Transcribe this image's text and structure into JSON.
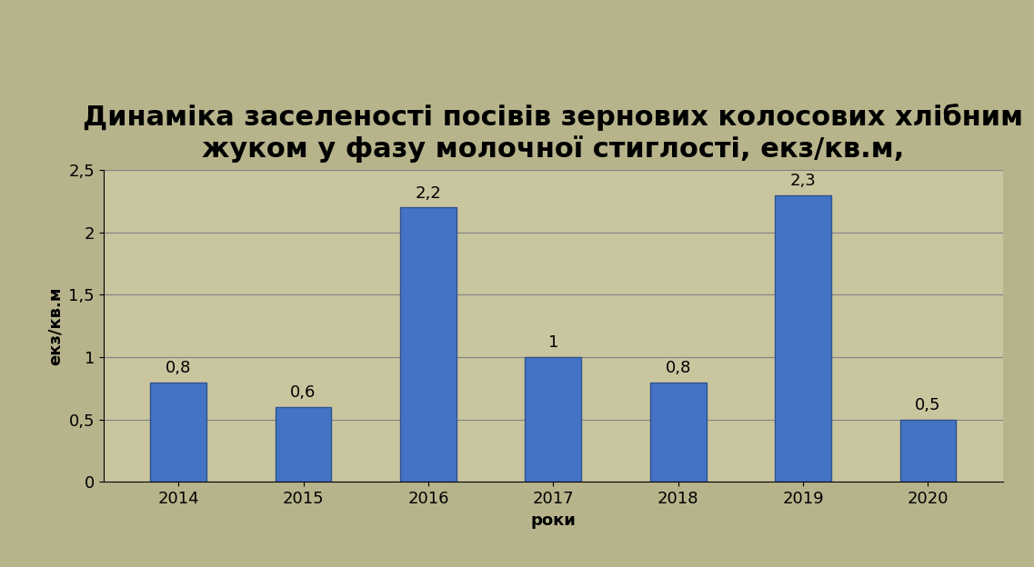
{
  "chart_data": {
    "type": "bar",
    "title": "Динаміка заселеності посівів зернових колосових хлібним жуком у фазу молочної стиглості, екз/кв.м,",
    "x_label": "роки",
    "y_label": "екз/кв.м",
    "categories": [
      "2014",
      "2015",
      "2016",
      "2017",
      "2018",
      "2019",
      "2020"
    ],
    "values": [
      0.8,
      0.6,
      2.2,
      1,
      0.8,
      2.3,
      0.5
    ],
    "value_labels": [
      "0,8",
      "0,6",
      "2,2",
      "1",
      "0,8",
      "2,3",
      "0,5"
    ],
    "data_labels": true,
    "color": "#4472c4",
    "ylim": [
      0,
      2.5
    ],
    "yticks": [
      0,
      {
        "value": 0.5,
        "label": "0,5"
      },
      1,
      {
        "value": 1.5,
        "label": "1,5"
      },
      2,
      {
        "value": 2.5,
        "label": "2,5"
      }
    ],
    "grid": true
  }
}
